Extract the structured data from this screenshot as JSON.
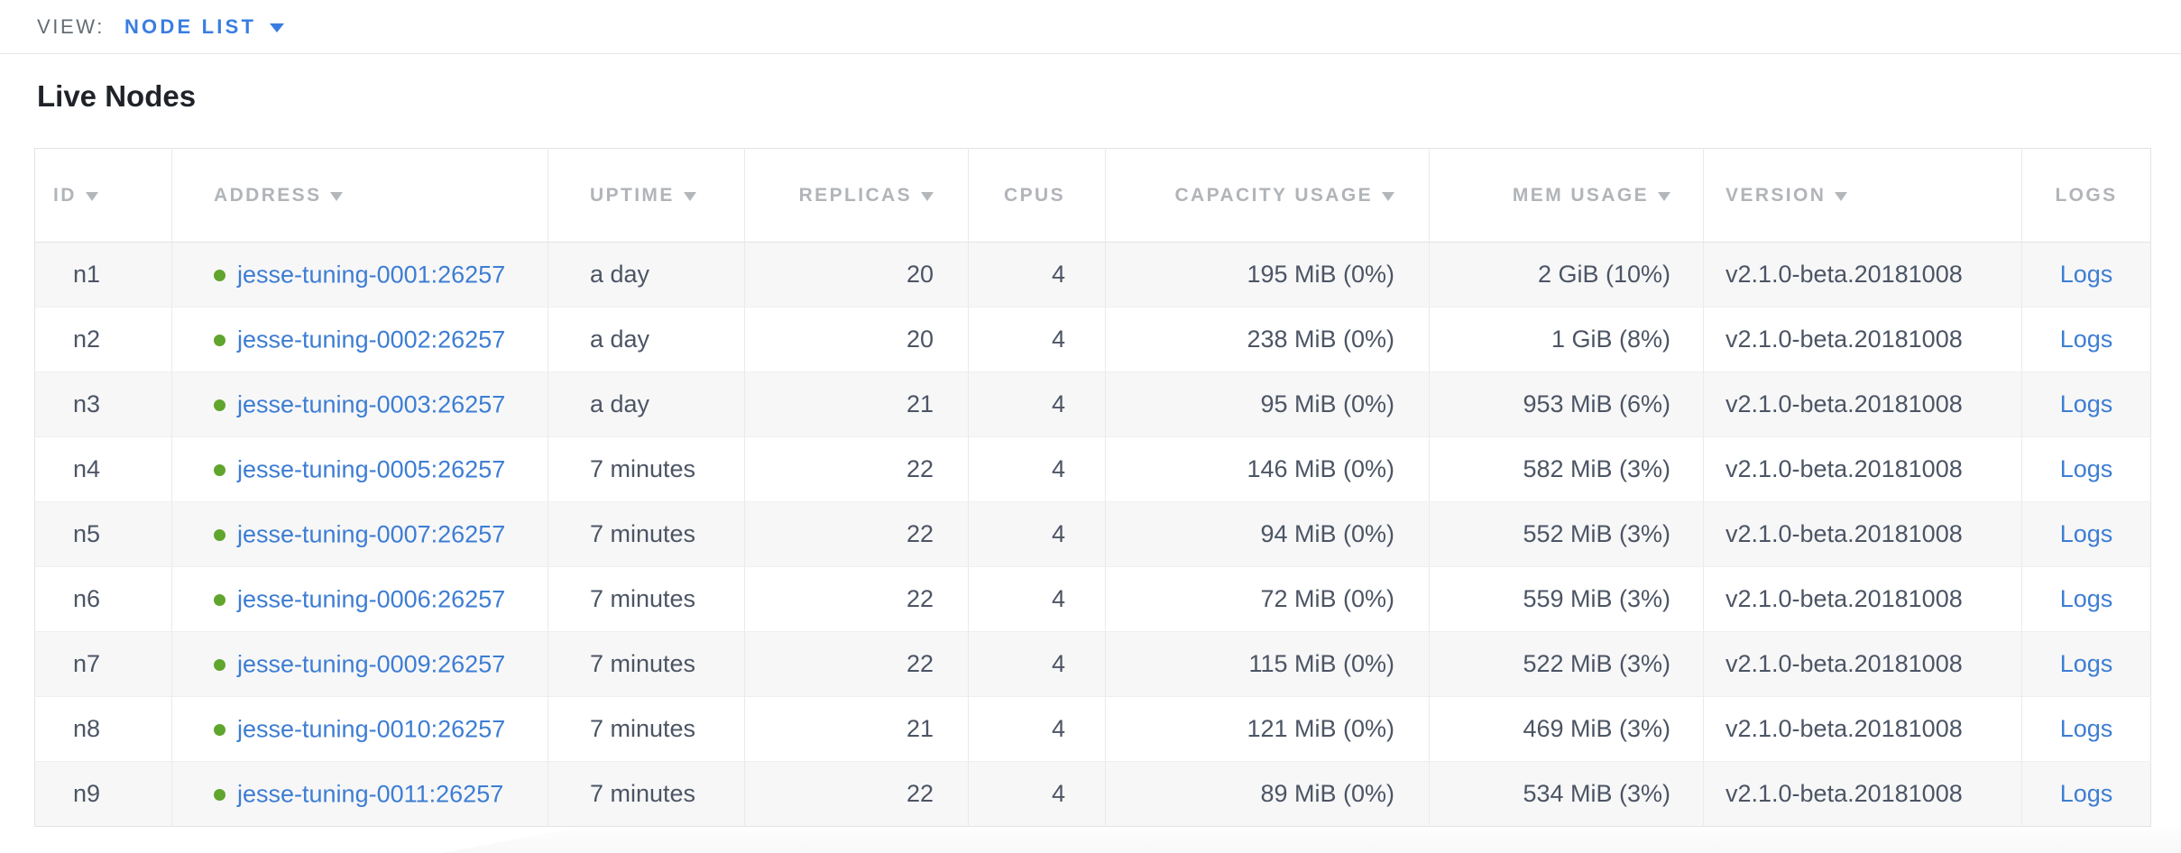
{
  "view_bar": {
    "label": "VIEW:",
    "selected": "NODE LIST"
  },
  "page": {
    "title": "Live Nodes"
  },
  "table": {
    "columns": [
      {
        "key": "id",
        "label": "ID",
        "sortable": true
      },
      {
        "key": "address",
        "label": "ADDRESS",
        "sortable": true
      },
      {
        "key": "uptime",
        "label": "UPTIME",
        "sortable": true
      },
      {
        "key": "replicas",
        "label": "REPLICAS",
        "sortable": true
      },
      {
        "key": "cpus",
        "label": "CPUS",
        "sortable": false
      },
      {
        "key": "capacity",
        "label": "CAPACITY USAGE",
        "sortable": true
      },
      {
        "key": "mem",
        "label": "MEM USAGE",
        "sortable": true
      },
      {
        "key": "version",
        "label": "VERSION",
        "sortable": true
      },
      {
        "key": "logs",
        "label": "LOGS",
        "sortable": false
      }
    ],
    "rows": [
      {
        "id": "n1",
        "status": "healthy",
        "address": "jesse-tuning-0001:26257",
        "uptime": "a day",
        "replicas": "20",
        "cpus": "4",
        "capacity": "195 MiB (0%)",
        "mem": "2 GiB (10%)",
        "version": "v2.1.0-beta.20181008",
        "logs_label": "Logs"
      },
      {
        "id": "n2",
        "status": "healthy",
        "address": "jesse-tuning-0002:26257",
        "uptime": "a day",
        "replicas": "20",
        "cpus": "4",
        "capacity": "238 MiB (0%)",
        "mem": "1 GiB (8%)",
        "version": "v2.1.0-beta.20181008",
        "logs_label": "Logs"
      },
      {
        "id": "n3",
        "status": "healthy",
        "address": "jesse-tuning-0003:26257",
        "uptime": "a day",
        "replicas": "21",
        "cpus": "4",
        "capacity": "95 MiB (0%)",
        "mem": "953 MiB (6%)",
        "version": "v2.1.0-beta.20181008",
        "logs_label": "Logs"
      },
      {
        "id": "n4",
        "status": "healthy",
        "address": "jesse-tuning-0005:26257",
        "uptime": "7 minutes",
        "replicas": "22",
        "cpus": "4",
        "capacity": "146 MiB (0%)",
        "mem": "582 MiB (3%)",
        "version": "v2.1.0-beta.20181008",
        "logs_label": "Logs"
      },
      {
        "id": "n5",
        "status": "healthy",
        "address": "jesse-tuning-0007:26257",
        "uptime": "7 minutes",
        "replicas": "22",
        "cpus": "4",
        "capacity": "94 MiB (0%)",
        "mem": "552 MiB (3%)",
        "version": "v2.1.0-beta.20181008",
        "logs_label": "Logs"
      },
      {
        "id": "n6",
        "status": "healthy",
        "address": "jesse-tuning-0006:26257",
        "uptime": "7 minutes",
        "replicas": "22",
        "cpus": "4",
        "capacity": "72 MiB (0%)",
        "mem": "559 MiB (3%)",
        "version": "v2.1.0-beta.20181008",
        "logs_label": "Logs"
      },
      {
        "id": "n7",
        "status": "healthy",
        "address": "jesse-tuning-0009:26257",
        "uptime": "7 minutes",
        "replicas": "22",
        "cpus": "4",
        "capacity": "115 MiB (0%)",
        "mem": "522 MiB (3%)",
        "version": "v2.1.0-beta.20181008",
        "logs_label": "Logs"
      },
      {
        "id": "n8",
        "status": "healthy",
        "address": "jesse-tuning-0010:26257",
        "uptime": "7 minutes",
        "replicas": "21",
        "cpus": "4",
        "capacity": "121 MiB (0%)",
        "mem": "469 MiB (3%)",
        "version": "v2.1.0-beta.20181008",
        "logs_label": "Logs"
      },
      {
        "id": "n9",
        "status": "healthy",
        "address": "jesse-tuning-0011:26257",
        "uptime": "7 minutes",
        "replicas": "22",
        "cpus": "4",
        "capacity": "89 MiB (0%)",
        "mem": "534 MiB (3%)",
        "version": "v2.1.0-beta.20181008",
        "logs_label": "Logs"
      }
    ]
  },
  "colors": {
    "accent_blue": "#3a7de1",
    "link_blue": "#3d7dd3",
    "healthy_green": "#60a52e",
    "header_gray": "#b1b4b8",
    "body_text": "#4c5564",
    "row_alt_bg": "#f7f7f8"
  }
}
